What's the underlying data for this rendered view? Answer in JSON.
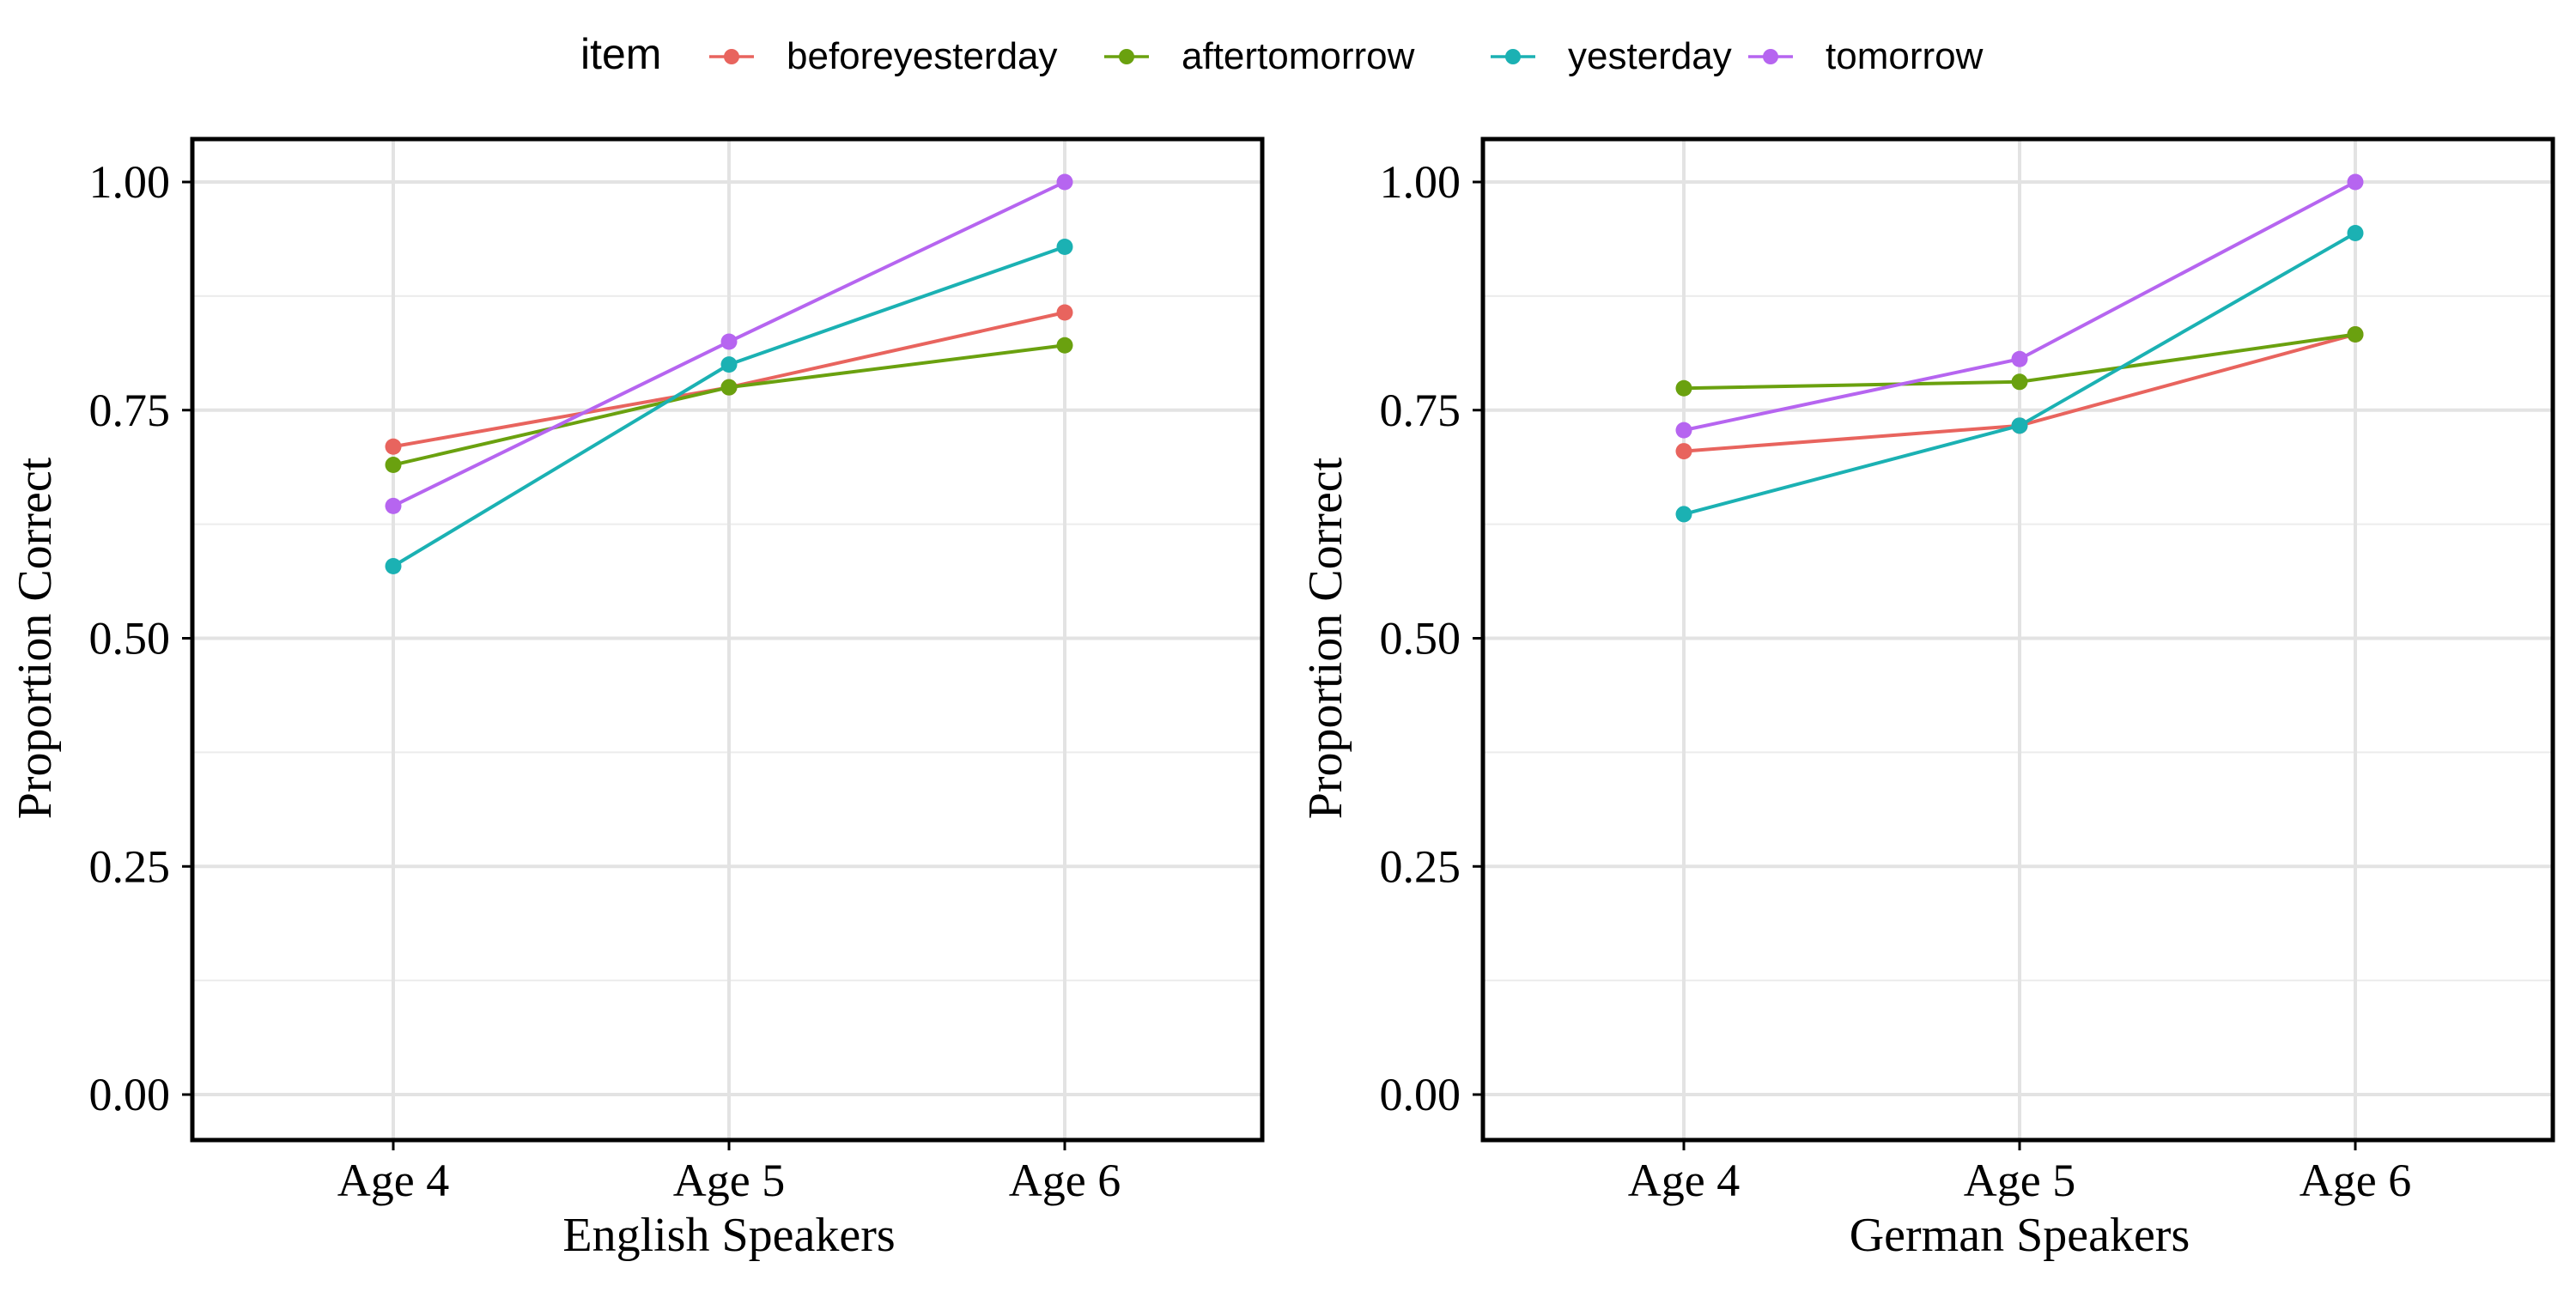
{
  "legend": {
    "title": "item",
    "position": "top",
    "items": [
      {
        "label": "beforeyesterday",
        "color": "#E8645E"
      },
      {
        "label": "aftertomorrow",
        "color": "#6AA10F"
      },
      {
        "label": "yesterday",
        "color": "#1BB1B3"
      },
      {
        "label": "tomorrow",
        "color": "#B665F0"
      }
    ]
  },
  "chart_data": [
    {
      "type": "line",
      "xlabel": "English Speakers",
      "ylabel": "Proportion Correct",
      "categories": [
        "Age 4",
        "Age 5",
        "Age 6"
      ],
      "ylim": [
        0,
        1
      ],
      "yticks": [
        "0.00",
        "0.25",
        "0.50",
        "0.75",
        "1.00"
      ],
      "grid": true,
      "series": [
        {
          "name": "beforeyesterday",
          "color": "#E8645E",
          "values": [
            0.71,
            0.775,
            0.857
          ]
        },
        {
          "name": "aftertomorrow",
          "color": "#6AA10F",
          "values": [
            0.69,
            0.775,
            0.821
          ]
        },
        {
          "name": "yesterday",
          "color": "#1BB1B3",
          "values": [
            0.579,
            0.8,
            0.929
          ]
        },
        {
          "name": "tomorrow",
          "color": "#B665F0",
          "values": [
            0.645,
            0.825,
            1.0
          ]
        }
      ]
    },
    {
      "type": "line",
      "xlabel": "German Speakers",
      "ylabel": "Proportion Correct",
      "categories": [
        "Age 4",
        "Age 5",
        "Age 6"
      ],
      "ylim": [
        0,
        1
      ],
      "yticks": [
        "0.00",
        "0.25",
        "0.50",
        "0.75",
        "1.00"
      ],
      "grid": true,
      "series": [
        {
          "name": "beforeyesterday",
          "color": "#E8645E",
          "values": [
            0.705,
            0.733,
            0.833
          ]
        },
        {
          "name": "aftertomorrow",
          "color": "#6AA10F",
          "values": [
            0.774,
            0.781,
            0.833
          ]
        },
        {
          "name": "yesterday",
          "color": "#1BB1B3",
          "values": [
            0.636,
            0.733,
            0.944
          ]
        },
        {
          "name": "tomorrow",
          "color": "#B665F0",
          "values": [
            0.728,
            0.806,
            1.0
          ]
        }
      ]
    }
  ]
}
